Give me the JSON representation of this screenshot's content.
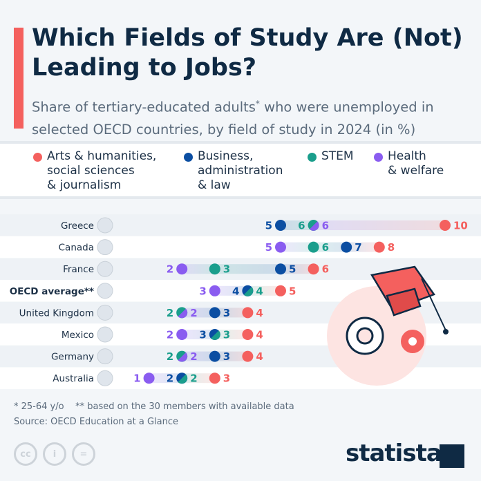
{
  "title": "Which Fields of Study Are (Not) Leading to Jobs?",
  "subtitle_pre": "Share of tertiary-educated adults",
  "subtitle_sup": "*",
  "subtitle_post": " who were unemployed in selected OECD countries, by field of study in 2024 (in %)",
  "chart_data": {
    "type": "dot",
    "categories": [
      "Greece",
      "Canada",
      "France",
      "OECD average**",
      "United Kingdom",
      "Mexico",
      "Germany",
      "Australia"
    ],
    "series": [
      {
        "name": "Arts & humanities,\nsocial sciences\n& journalism",
        "color": "#f4605e",
        "values": [
          10,
          8,
          6,
          5,
          4,
          4,
          4,
          3
        ]
      },
      {
        "name": "Business,\nadministration\n& law",
        "color": "#0b4ea2",
        "values": [
          5,
          7,
          5,
          4,
          3,
          3,
          3,
          2
        ]
      },
      {
        "name": "STEM",
        "color": "#1a9e8c",
        "values": [
          6,
          6,
          3,
          4,
          2,
          3,
          2,
          2
        ]
      },
      {
        "name": "Health\n& welfare",
        "color": "#8a5cf0",
        "values": [
          6,
          5,
          2,
          3,
          2,
          2,
          2,
          1
        ]
      }
    ],
    "unit": "%"
  },
  "footer": {
    "note": "* 25-64 y/o    ** based on the 30 members with available data",
    "source": "Source: OECD Education at a Glance",
    "cc": [
      "cc",
      "i",
      "="
    ],
    "brand": "statista"
  },
  "colors": {
    "accent": "#f4605e",
    "title": "#0f2a44"
  }
}
